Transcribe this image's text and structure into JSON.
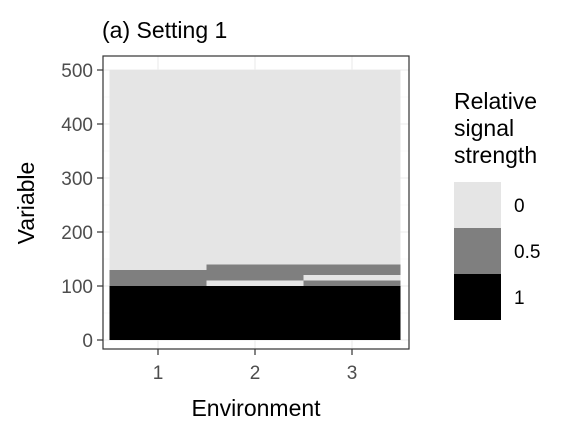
{
  "chart_data": {
    "type": "heatmap",
    "title": "(a) Setting 1",
    "xlabel": "Environment",
    "ylabel": "Variable",
    "x_categories": [
      "1",
      "2",
      "3"
    ],
    "y_ticks": [
      "0",
      "100",
      "200",
      "300",
      "400",
      "500"
    ],
    "ylim": [
      0,
      500
    ],
    "grid": true,
    "legend": {
      "title": [
        "Relative",
        "signal",
        "strength"
      ],
      "position": "right",
      "entries": [
        {
          "label": "0",
          "value": 0,
          "color": "#e5e5e5"
        },
        {
          "label": "0.5",
          "value": 0.5,
          "color": "#7f7f7f"
        },
        {
          "label": "1",
          "value": 1,
          "color": "#000000"
        }
      ]
    },
    "cells": [
      {
        "env": 1,
        "from": 0,
        "to": 100,
        "value": 1
      },
      {
        "env": 1,
        "from": 100,
        "to": 130,
        "value": 0.5
      },
      {
        "env": 1,
        "from": 130,
        "to": 500,
        "value": 0
      },
      {
        "env": 2,
        "from": 0,
        "to": 100,
        "value": 1
      },
      {
        "env": 2,
        "from": 100,
        "to": 110,
        "value": 0
      },
      {
        "env": 2,
        "from": 110,
        "to": 140,
        "value": 0.5
      },
      {
        "env": 2,
        "from": 140,
        "to": 500,
        "value": 0
      },
      {
        "env": 3,
        "from": 0,
        "to": 100,
        "value": 1
      },
      {
        "env": 3,
        "from": 100,
        "to": 110,
        "value": 0.5
      },
      {
        "env": 3,
        "from": 110,
        "to": 120,
        "value": 0
      },
      {
        "env": 3,
        "from": 120,
        "to": 140,
        "value": 0.5
      },
      {
        "env": 3,
        "from": 140,
        "to": 500,
        "value": 0
      }
    ]
  }
}
